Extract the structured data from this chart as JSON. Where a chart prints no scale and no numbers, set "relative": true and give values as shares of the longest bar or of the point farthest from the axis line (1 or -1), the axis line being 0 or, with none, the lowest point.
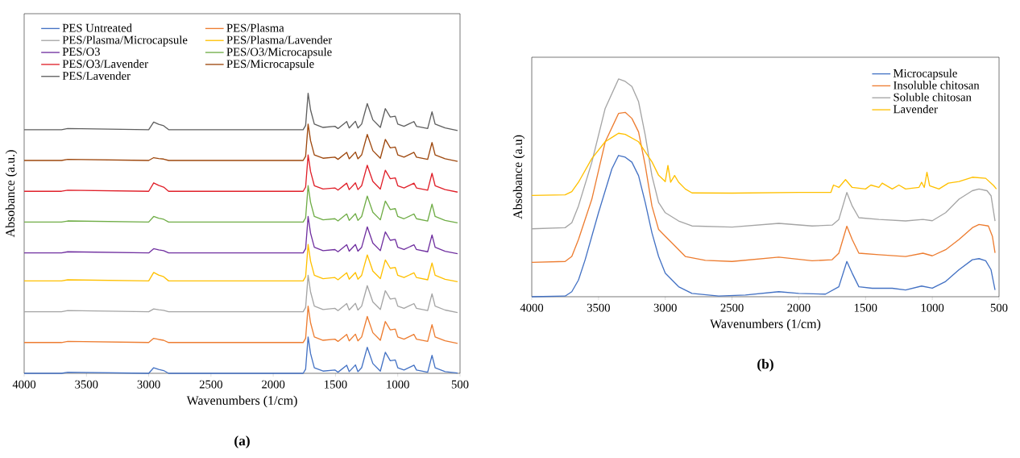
{
  "chart_data": [
    {
      "type": "line",
      "xlabel": "Wavenumbers (1/cm)",
      "ylabel": "Absobance (a.u.)",
      "relative": true,
      "xlim": [
        4000,
        500
      ],
      "xticks": [
        4000,
        3500,
        3000,
        2500,
        2000,
        1500,
        1000,
        500
      ],
      "legend": "top left",
      "line_style": "solid",
      "marker": "none",
      "annotations": [
        "(a)"
      ],
      "x": [
        4000,
        3700,
        3650,
        3000,
        2960,
        2920,
        2880,
        2840,
        2000,
        1760,
        1740,
        1720,
        1700,
        1670,
        1600,
        1505,
        1480,
        1410,
        1390,
        1340,
        1320,
        1290,
        1245,
        1200,
        1140,
        1100,
        1060,
        1020,
        1000,
        950,
        870,
        850,
        760,
        725,
        700,
        620,
        520
      ],
      "series": [
        {
          "name": "PES Untreated",
          "color": "#4472c4",
          "values": [
            0,
            0,
            0.004,
            0,
            0.02,
            0.014,
            0.01,
            0,
            0,
            0,
            0.015,
            0.13,
            0.07,
            0.02,
            0.008,
            0.012,
            0.004,
            0.029,
            0.006,
            0.03,
            0.006,
            0.02,
            0.093,
            0.035,
            0.008,
            0.075,
            0.045,
            0.048,
            0.02,
            0.012,
            0.029,
            0.012,
            0.004,
            0.064,
            0.02,
            0.006,
            0.001
          ]
        },
        {
          "name": "PES/Plasma",
          "color": "#ed7d31",
          "values": [
            0.11,
            0.11,
            0.114,
            0.11,
            0.125,
            0.121,
            0.118,
            0.11,
            0.11,
            0.11,
            0.125,
            0.24,
            0.18,
            0.13,
            0.118,
            0.122,
            0.114,
            0.139,
            0.116,
            0.14,
            0.116,
            0.13,
            0.203,
            0.145,
            0.118,
            0.185,
            0.155,
            0.158,
            0.13,
            0.122,
            0.139,
            0.122,
            0.114,
            0.174,
            0.13,
            0.116,
            0.107
          ]
        },
        {
          "name": "PES/Plasma/Microcapsule",
          "color": "#a5a5a5",
          "values": [
            0.22,
            0.22,
            0.224,
            0.22,
            0.23,
            0.227,
            0.225,
            0.22,
            0.22,
            0.22,
            0.235,
            0.35,
            0.29,
            0.24,
            0.228,
            0.232,
            0.224,
            0.249,
            0.226,
            0.25,
            0.226,
            0.24,
            0.313,
            0.255,
            0.228,
            0.295,
            0.265,
            0.268,
            0.24,
            0.232,
            0.249,
            0.232,
            0.224,
            0.284,
            0.24,
            0.226,
            0.217
          ]
        },
        {
          "name": "PES/Plasma/Lavender",
          "color": "#ffc000",
          "values": [
            0.33,
            0.33,
            0.334,
            0.33,
            0.36,
            0.351,
            0.345,
            0.33,
            0.33,
            0.33,
            0.345,
            0.46,
            0.4,
            0.35,
            0.338,
            0.342,
            0.334,
            0.359,
            0.336,
            0.36,
            0.336,
            0.35,
            0.423,
            0.365,
            0.338,
            0.405,
            0.375,
            0.378,
            0.35,
            0.342,
            0.359,
            0.342,
            0.334,
            0.394,
            0.35,
            0.336,
            0.327
          ]
        },
        {
          "name": "PES/O3",
          "color": "#7030a0",
          "values": [
            0.43,
            0.43,
            0.434,
            0.43,
            0.445,
            0.441,
            0.438,
            0.43,
            0.43,
            0.43,
            0.445,
            0.56,
            0.5,
            0.45,
            0.438,
            0.442,
            0.434,
            0.459,
            0.436,
            0.46,
            0.436,
            0.45,
            0.523,
            0.465,
            0.438,
            0.505,
            0.475,
            0.478,
            0.45,
            0.442,
            0.459,
            0.442,
            0.434,
            0.494,
            0.45,
            0.436,
            0.427
          ]
        },
        {
          "name": "PES/O3/Microcapsule",
          "color": "#70ad47",
          "values": [
            0.54,
            0.54,
            0.544,
            0.54,
            0.56,
            0.554,
            0.55,
            0.54,
            0.54,
            0.54,
            0.555,
            0.67,
            0.61,
            0.56,
            0.548,
            0.552,
            0.544,
            0.569,
            0.546,
            0.57,
            0.546,
            0.56,
            0.633,
            0.575,
            0.548,
            0.615,
            0.585,
            0.588,
            0.56,
            0.552,
            0.569,
            0.552,
            0.544,
            0.604,
            0.56,
            0.546,
            0.537
          ]
        },
        {
          "name": "PES/O3/Lavender",
          "color": "#e0202a",
          "values": [
            0.65,
            0.65,
            0.654,
            0.65,
            0.68,
            0.671,
            0.665,
            0.65,
            0.65,
            0.65,
            0.665,
            0.78,
            0.72,
            0.67,
            0.658,
            0.662,
            0.654,
            0.679,
            0.656,
            0.68,
            0.656,
            0.67,
            0.743,
            0.685,
            0.658,
            0.725,
            0.695,
            0.698,
            0.67,
            0.662,
            0.679,
            0.662,
            0.654,
            0.714,
            0.67,
            0.656,
            0.647
          ]
        },
        {
          "name": "PES/Microcapsule",
          "color": "#9e480e",
          "values": [
            0.76,
            0.76,
            0.764,
            0.76,
            0.77,
            0.767,
            0.765,
            0.76,
            0.76,
            0.76,
            0.775,
            0.89,
            0.83,
            0.78,
            0.768,
            0.772,
            0.764,
            0.789,
            0.766,
            0.79,
            0.766,
            0.78,
            0.853,
            0.795,
            0.768,
            0.835,
            0.805,
            0.808,
            0.78,
            0.772,
            0.789,
            0.772,
            0.764,
            0.824,
            0.78,
            0.766,
            0.757
          ]
        },
        {
          "name": "PES/Lavender",
          "color": "#5f5f5f",
          "values": [
            0.87,
            0.87,
            0.874,
            0.87,
            0.897,
            0.889,
            0.884,
            0.87,
            0.87,
            0.87,
            0.885,
            1.0,
            0.94,
            0.89,
            0.878,
            0.882,
            0.874,
            0.899,
            0.876,
            0.9,
            0.876,
            0.89,
            0.963,
            0.905,
            0.878,
            0.945,
            0.915,
            0.918,
            0.89,
            0.882,
            0.899,
            0.882,
            0.874,
            0.934,
            0.89,
            0.876,
            0.867
          ]
        }
      ]
    },
    {
      "type": "line",
      "xlabel": "Wavenumbers (1/cm)",
      "ylabel": "Absobance (a.u)",
      "relative": true,
      "xlim": [
        4000,
        500
      ],
      "xticks": [
        4000,
        3500,
        3000,
        2500,
        2000,
        1500,
        1000,
        500
      ],
      "legend": "top right",
      "line_style": "solid",
      "marker": "none",
      "annotations": [
        "(b)"
      ],
      "series": [
        {
          "name": "Microcapsule",
          "color": "#4472c4",
          "x": [
            4000,
            3750,
            3700,
            3650,
            3600,
            3500,
            3400,
            3350,
            3300,
            3250,
            3200,
            3150,
            3100,
            3050,
            3000,
            2900,
            2800,
            2600,
            2400,
            2150,
            2000,
            1800,
            1700,
            1640,
            1600,
            1550,
            1450,
            1300,
            1200,
            1080,
            1000,
            900,
            800,
            700,
            650,
            600,
            560,
            530
          ],
          "values": [
            0,
            0.003,
            0.023,
            0.077,
            0.17,
            0.386,
            0.587,
            0.649,
            0.641,
            0.618,
            0.556,
            0.433,
            0.294,
            0.185,
            0.108,
            0.046,
            0.015,
            0.003,
            0.008,
            0.023,
            0.015,
            0.012,
            0.046,
            0.162,
            0.108,
            0.046,
            0.039,
            0.039,
            0.031,
            0.049,
            0.039,
            0.07,
            0.124,
            0.17,
            0.175,
            0.165,
            0.124,
            0.031
          ]
        },
        {
          "name": "Insoluble chitosan",
          "color": "#ed7d31",
          "x": [
            4000,
            3750,
            3700,
            3650,
            3550,
            3450,
            3350,
            3300,
            3250,
            3200,
            3150,
            3100,
            3050,
            3000,
            2950,
            2850,
            2700,
            2500,
            2150,
            1900,
            1750,
            1700,
            1640,
            1600,
            1550,
            1400,
            1200,
            1070,
            1000,
            900,
            800,
            700,
            650,
            580,
            550,
            530
          ],
          "values": [
            0.158,
            0.162,
            0.185,
            0.263,
            0.448,
            0.711,
            0.842,
            0.847,
            0.819,
            0.757,
            0.603,
            0.417,
            0.309,
            0.278,
            0.247,
            0.185,
            0.167,
            0.162,
            0.182,
            0.165,
            0.17,
            0.2,
            0.324,
            0.263,
            0.2,
            0.193,
            0.185,
            0.2,
            0.188,
            0.216,
            0.263,
            0.317,
            0.332,
            0.325,
            0.278,
            0.201
          ]
        },
        {
          "name": "Soluble chitosan",
          "color": "#a5a5a5",
          "x": [
            4000,
            3750,
            3700,
            3650,
            3550,
            3450,
            3350,
            3300,
            3250,
            3200,
            3150,
            3100,
            3050,
            3000,
            2900,
            2800,
            2500,
            2150,
            1900,
            1750,
            1700,
            1640,
            1600,
            1550,
            1400,
            1200,
            1070,
            1000,
            900,
            800,
            700,
            650,
            590,
            560,
            530
          ],
          "values": [
            0.312,
            0.317,
            0.34,
            0.417,
            0.618,
            0.865,
            1.0,
            0.989,
            0.966,
            0.896,
            0.742,
            0.556,
            0.433,
            0.386,
            0.348,
            0.325,
            0.32,
            0.337,
            0.325,
            0.329,
            0.355,
            0.479,
            0.417,
            0.363,
            0.355,
            0.348,
            0.355,
            0.349,
            0.386,
            0.448,
            0.487,
            0.495,
            0.487,
            0.464,
            0.348
          ]
        },
        {
          "name": "Lavender",
          "color": "#ffc000",
          "x": [
            4000,
            3750,
            3700,
            3650,
            3550,
            3450,
            3350,
            3300,
            3200,
            3100,
            3050,
            3000,
            2980,
            2960,
            2930,
            2900,
            2850,
            2800,
            2500,
            2000,
            1760,
            1740,
            1700,
            1650,
            1600,
            1500,
            1460,
            1400,
            1375,
            1300,
            1250,
            1200,
            1100,
            1080,
            1060,
            1040,
            1020,
            950,
            880,
            800,
            700,
            600,
            540,
            520
          ],
          "values": [
            0.465,
            0.468,
            0.483,
            0.526,
            0.635,
            0.712,
            0.751,
            0.746,
            0.712,
            0.62,
            0.558,
            0.529,
            0.603,
            0.526,
            0.557,
            0.526,
            0.495,
            0.477,
            0.476,
            0.479,
            0.479,
            0.513,
            0.502,
            0.538,
            0.502,
            0.495,
            0.513,
            0.502,
            0.522,
            0.495,
            0.513,
            0.495,
            0.502,
            0.526,
            0.502,
            0.572,
            0.51,
            0.495,
            0.522,
            0.529,
            0.549,
            0.544,
            0.51,
            0.495
          ]
        }
      ]
    }
  ]
}
